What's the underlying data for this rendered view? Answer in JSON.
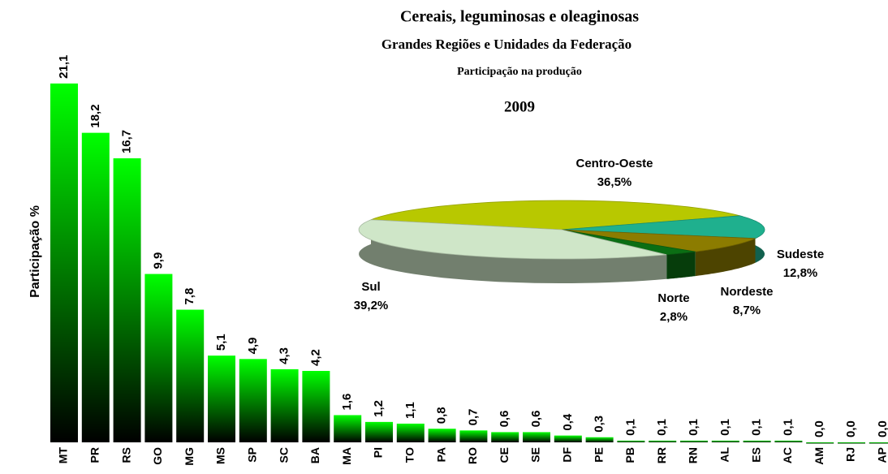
{
  "chart_data": [
    {
      "type": "bar",
      "title": "Cereais, leguminosas e oleaginosas",
      "subtitle": "Grandes Regiões e Unidades da Federação",
      "caption": "Participação na produção",
      "year": "2009",
      "y_label": "Participação %",
      "categories": [
        "MT",
        "PR",
        "RS",
        "GO",
        "MG",
        "MS",
        "SP",
        "SC",
        "BA",
        "MA",
        "PI",
        "TO",
        "PA",
        "RO",
        "CE",
        "SE",
        "DF",
        "PE",
        "PB",
        "RR",
        "RN",
        "AL",
        "ES",
        "AC",
        "AM",
        "RJ",
        "AP"
      ],
      "values": [
        21.1,
        18.2,
        16.7,
        9.9,
        7.8,
        5.1,
        4.9,
        4.3,
        4.2,
        1.6,
        1.2,
        1.1,
        0.8,
        0.7,
        0.6,
        0.6,
        0.4,
        0.3,
        0.1,
        0.1,
        0.1,
        0.1,
        0.1,
        0.1,
        0.0,
        0.0,
        0.0
      ],
      "value_labels": [
        "21,1",
        "18,2",
        "16,7",
        "9,9",
        "7,8",
        "5,1",
        "4,9",
        "4,3",
        "4,2",
        "1,6",
        "1,2",
        "1,1",
        "0,8",
        "0,7",
        "0,6",
        "0,6",
        "0,4",
        "0,3",
        "0,1",
        "0,1",
        "0,1",
        "0,1",
        "0,1",
        "0,1",
        "0,0",
        "0,0",
        "0,0"
      ],
      "color": "#00ff00",
      "ylim": [
        0,
        22
      ]
    },
    {
      "type": "pie",
      "categories": [
        "Centro-Oeste",
        "Sudeste",
        "Nordeste",
        "Norte",
        "Sul"
      ],
      "values": [
        36.5,
        12.8,
        8.7,
        2.8,
        39.2
      ],
      "value_labels": [
        "36,5%",
        "12,8%",
        "8,7%",
        "2,8%",
        "39,2%"
      ],
      "colors": [
        "#b8c800",
        "#1fb08e",
        "#8c7c00",
        "#0b6e14",
        "#cfe6c8"
      ]
    }
  ]
}
